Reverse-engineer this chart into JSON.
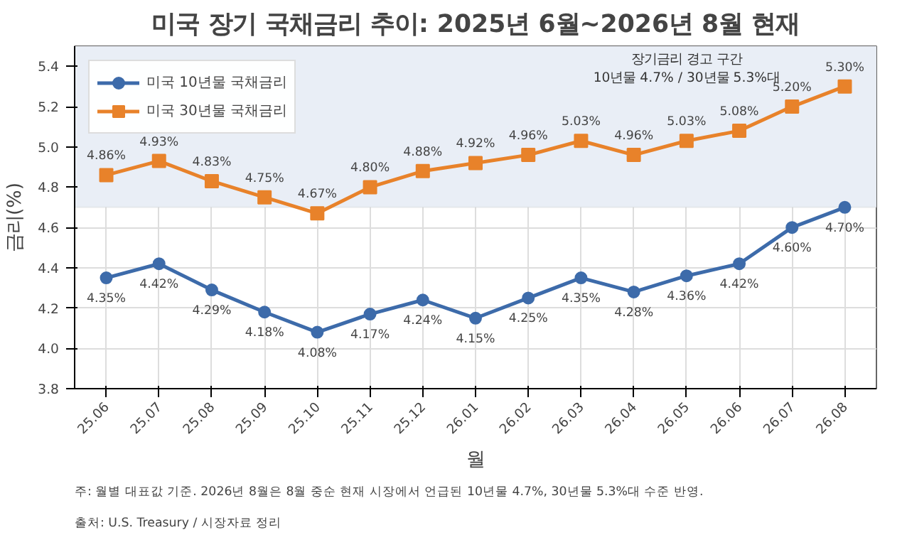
{
  "chart_data": {
    "type": "line",
    "title": "미국 장기 국채금리 추이: 2025년 6월~2026년 8월 현재",
    "xlabel": "월",
    "ylabel": "금리(%)",
    "categories": [
      "25.06",
      "25.07",
      "25.08",
      "25.09",
      "25.10",
      "25.11",
      "25.12",
      "26.01",
      "26.02",
      "26.03",
      "26.04",
      "26.05",
      "26.06",
      "26.07",
      "26.08"
    ],
    "series": [
      {
        "name": "미국 10년물 국채금리",
        "color": "#3d6baa",
        "marker": "circle",
        "values": [
          4.35,
          4.42,
          4.29,
          4.18,
          4.08,
          4.17,
          4.24,
          4.15,
          4.25,
          4.35,
          4.28,
          4.36,
          4.42,
          4.6,
          4.7
        ],
        "value_labels": [
          "4.35%",
          "4.42%",
          "4.29%",
          "4.18%",
          "4.08%",
          "4.17%",
          "4.24%",
          "4.15%",
          "4.25%",
          "4.35%",
          "4.28%",
          "4.36%",
          "4.42%",
          "4.60%",
          "4.70%"
        ]
      },
      {
        "name": "미국 30년물 국채금리",
        "color": "#e8822a",
        "marker": "square",
        "values": [
          4.86,
          4.93,
          4.83,
          4.75,
          4.67,
          4.8,
          4.88,
          4.92,
          4.96,
          5.03,
          4.96,
          5.03,
          5.08,
          5.2,
          5.3
        ],
        "value_labels": [
          "4.86%",
          "4.93%",
          "4.83%",
          "4.75%",
          "4.67%",
          "4.80%",
          "4.88%",
          "4.92%",
          "4.96%",
          "5.03%",
          "4.96%",
          "5.03%",
          "5.08%",
          "5.20%",
          "5.30%"
        ]
      }
    ],
    "ylim": [
      3.8,
      5.5
    ],
    "yticks": [
      3.8,
      {
        "value": 4.0,
        "label": "4.0"
      },
      4.2,
      4.4,
      4.6,
      4.8,
      {
        "value": 5.0,
        "label": "5.0"
      },
      5.2,
      5.4
    ],
    "bands": [
      {
        "axis": "y",
        "from": 4.7,
        "to": 5.5,
        "label": "장기금리 경고 구간\n10년물 4.7% / 30년물 5.3%대",
        "color": "#e9eef6"
      }
    ],
    "grid": true,
    "legend": "top left",
    "line_style": "solid",
    "annotations": [
      "출처: U.S. Treasury / 시장자료 정리",
      "주: 월별 대표값 기준. 2026년 8월은 8월 중순 현재 시장에서 언급된 10년물 4.7%, 30년물 5.3%대 수준 반영."
    ]
  }
}
